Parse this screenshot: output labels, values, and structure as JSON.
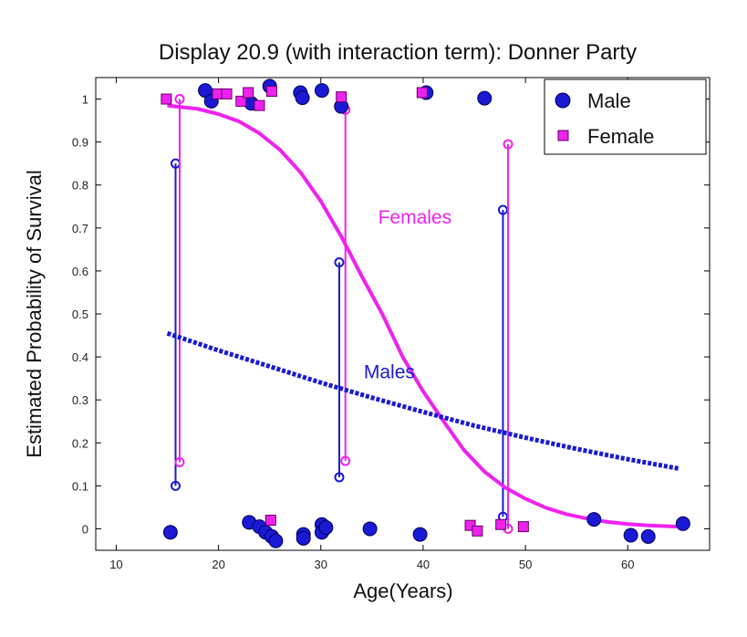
{
  "chart_data": {
    "type": "scatter",
    "title": "Display 20.9 (with interaction term): Donner Party",
    "xlabel": "Age(Years)",
    "ylabel": "Estimated Probability of Survival",
    "xlim": [
      8,
      68
    ],
    "ylim": [
      -0.05,
      1.05
    ],
    "xticks": [
      10,
      20,
      30,
      40,
      50,
      60
    ],
    "yticks": [
      0,
      0.1,
      0.2,
      0.3,
      0.4,
      0.5,
      0.6,
      0.7,
      0.8,
      0.9,
      1
    ],
    "grid": false,
    "legend": {
      "position": "top-right",
      "entries": [
        "Male",
        "Female"
      ]
    },
    "colors": {
      "male": "#1a1ad4",
      "female": "#ee22ee"
    },
    "series": [
      {
        "name": "Male",
        "marker": "circle",
        "points": [
          [
            15.3,
            -0.008
          ],
          [
            18.7,
            1.02
          ],
          [
            19.3,
            0.995
          ],
          [
            23.0,
            0.015
          ],
          [
            23.2,
            0.99
          ],
          [
            24.0,
            0.005
          ],
          [
            24.6,
            -0.008
          ],
          [
            25.0,
            1.03
          ],
          [
            25.2,
            -0.018
          ],
          [
            25.6,
            -0.028
          ],
          [
            28.0,
            1.015
          ],
          [
            28.2,
            1.003
          ],
          [
            28.3,
            -0.013
          ],
          [
            28.3,
            -0.022
          ],
          [
            30.1,
            1.02
          ],
          [
            30.1,
            0.01
          ],
          [
            30.1,
            -0.008
          ],
          [
            30.5,
            0.003
          ],
          [
            32.0,
            0.983
          ],
          [
            34.8,
            0.0
          ],
          [
            39.7,
            -0.013
          ],
          [
            40.3,
            1.015
          ],
          [
            46.0,
            1.002
          ],
          [
            56.7,
            0.022
          ],
          [
            60.3,
            -0.015
          ],
          [
            62.0,
            -0.018
          ],
          [
            65.4,
            0.012
          ]
        ]
      },
      {
        "name": "Female",
        "marker": "square",
        "points": [
          [
            14.9,
            1.0
          ],
          [
            19.9,
            1.012
          ],
          [
            20.8,
            1.012
          ],
          [
            22.2,
            0.995
          ],
          [
            22.9,
            1.015
          ],
          [
            24.0,
            0.985
          ],
          [
            25.1,
            0.02
          ],
          [
            25.2,
            1.018
          ],
          [
            32.0,
            1.005
          ],
          [
            39.9,
            1.015
          ],
          [
            44.6,
            0.008
          ],
          [
            45.3,
            -0.005
          ],
          [
            47.6,
            0.01
          ],
          [
            49.8,
            0.005
          ]
        ]
      }
    ],
    "curves": [
      {
        "name": "Females",
        "style": "solid",
        "color": "#ee22ee",
        "label_at": [
          35.6,
          0.71
        ],
        "points": [
          [
            15,
            0.985
          ],
          [
            18,
            0.977
          ],
          [
            20,
            0.965
          ],
          [
            22,
            0.948
          ],
          [
            24,
            0.92
          ],
          [
            26,
            0.882
          ],
          [
            28,
            0.83
          ],
          [
            30,
            0.762
          ],
          [
            32,
            0.68
          ],
          [
            34,
            0.588
          ],
          [
            36,
            0.5
          ],
          [
            38,
            0.4
          ],
          [
            40,
            0.32
          ],
          [
            42,
            0.25
          ],
          [
            44,
            0.183
          ],
          [
            46,
            0.133
          ],
          [
            48,
            0.096
          ],
          [
            50,
            0.07
          ],
          [
            52,
            0.049
          ],
          [
            54,
            0.034
          ],
          [
            56,
            0.024
          ],
          [
            58,
            0.016
          ],
          [
            60,
            0.011
          ],
          [
            62,
            0.008
          ],
          [
            65,
            0.005
          ]
        ]
      },
      {
        "name": "Males",
        "style": "dashed",
        "color": "#1a1ad4",
        "label_at": [
          34.2,
          0.35
        ],
        "points": [
          [
            15,
            0.455
          ],
          [
            20,
            0.415
          ],
          [
            25,
            0.378
          ],
          [
            30,
            0.34
          ],
          [
            35,
            0.305
          ],
          [
            40,
            0.272
          ],
          [
            45,
            0.24
          ],
          [
            50,
            0.212
          ],
          [
            55,
            0.186
          ],
          [
            60,
            0.162
          ],
          [
            65,
            0.14
          ]
        ]
      }
    ],
    "stems": [
      {
        "group": "male",
        "x": 15.8,
        "y1": 0.1,
        "y2": 0.85
      },
      {
        "group": "female",
        "x": 16.2,
        "y1": 0.155,
        "y2": 1.0
      },
      {
        "group": "male",
        "x": 31.8,
        "y1": 0.12,
        "y2": 0.62
      },
      {
        "group": "female",
        "x": 32.4,
        "y1": 0.158,
        "y2": 0.975
      },
      {
        "group": "male",
        "x": 47.8,
        "y1": 0.028,
        "y2": 0.742
      },
      {
        "group": "female",
        "x": 48.3,
        "y1": 0.0,
        "y2": 0.895
      }
    ]
  }
}
